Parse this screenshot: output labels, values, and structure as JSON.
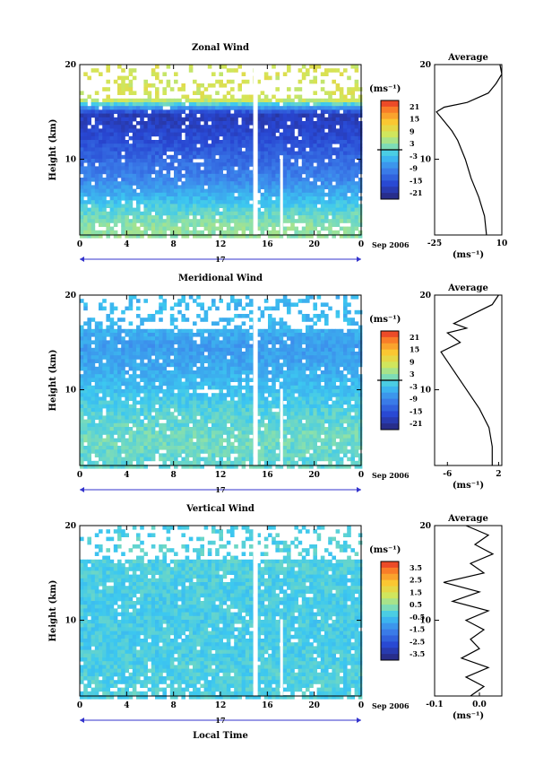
{
  "chart_data": [
    {
      "type": "heatmap",
      "title": "Zonal Wind",
      "ylabel": "Height (km)",
      "yticks": [
        "20",
        "10"
      ],
      "xticks": [
        "0",
        "4",
        "8",
        "12",
        "16",
        "20",
        "0"
      ],
      "ylim": [
        2,
        20
      ],
      "xlim": [
        0,
        24
      ],
      "day_label": "17",
      "date_label": "Sep 2006",
      "colorbar": {
        "unit": "(ms⁻¹)",
        "ticks": [
          "21",
          "15",
          "9",
          "3",
          "-3",
          "-9",
          "-15",
          "-21"
        ],
        "range": [
          -24,
          24
        ],
        "zero_line": true
      },
      "field_profile": [
        {
          "h": 3,
          "v": 3
        },
        {
          "h": 5,
          "v": -1
        },
        {
          "h": 8,
          "v": -9
        },
        {
          "h": 11,
          "v": -14
        },
        {
          "h": 13,
          "v": -17
        },
        {
          "h": 15,
          "v": -19
        },
        {
          "h": 16.5,
          "v": 8
        }
      ],
      "average": {
        "title": "Average",
        "unit": "(ms⁻¹)",
        "xticks": [
          "-25",
          "10"
        ],
        "xlim": [
          -25,
          10
        ],
        "yticks": [
          "20",
          "10"
        ],
        "h": [
          2,
          4,
          6,
          8,
          10,
          12,
          13,
          14,
          15,
          15.5,
          16,
          17,
          18,
          19,
          20
        ],
        "v": [
          2,
          1,
          -2,
          -6,
          -9,
          -13,
          -16,
          -20,
          -24,
          -20,
          -8,
          3,
          7,
          10,
          9
        ]
      }
    },
    {
      "type": "heatmap",
      "title": "Meridional Wind",
      "ylabel": "Height (km)",
      "yticks": [
        "20",
        "10"
      ],
      "xticks": [
        "0",
        "4",
        "8",
        "12",
        "16",
        "20",
        "0"
      ],
      "ylim": [
        2,
        20
      ],
      "xlim": [
        0,
        24
      ],
      "day_label": "17",
      "date_label": "Sep 2006",
      "colorbar": {
        "unit": "(ms⁻¹)",
        "ticks": [
          "21",
          "15",
          "9",
          "3",
          "-3",
          "-9",
          "-15",
          "-21"
        ],
        "range": [
          -24,
          24
        ],
        "zero_line": true
      },
      "field_profile": [
        {
          "h": 3,
          "v": 0
        },
        {
          "h": 5,
          "v": 1
        },
        {
          "h": 8,
          "v": -1
        },
        {
          "h": 11,
          "v": -4
        },
        {
          "h": 13,
          "v": -6
        },
        {
          "h": 15,
          "v": -7
        },
        {
          "h": 17,
          "v": -4
        }
      ],
      "average": {
        "title": "Average",
        "unit": "(ms⁻¹)",
        "xticks": [
          "-6",
          "2"
        ],
        "xlim": [
          -8,
          2.5
        ],
        "yticks": [
          "20",
          "10"
        ],
        "h": [
          2,
          4,
          6,
          8,
          10,
          12,
          13,
          14,
          15,
          16,
          16.5,
          17,
          18,
          19,
          20
        ],
        "v": [
          1,
          1,
          0.5,
          -1,
          -3,
          -5,
          -6,
          -7,
          -4,
          -6,
          -3,
          -5,
          -2,
          1,
          2
        ]
      }
    },
    {
      "type": "heatmap",
      "title": "Vertical Wind",
      "ylabel": "Height (km)",
      "xlabel": "Local Time",
      "yticks": [
        "20",
        "10"
      ],
      "xticks": [
        "0",
        "4",
        "8",
        "12",
        "16",
        "20",
        "0"
      ],
      "ylim": [
        2,
        20
      ],
      "xlim": [
        0,
        24
      ],
      "day_label": "17",
      "date_label": "Sep 2006",
      "colorbar": {
        "unit": "(ms⁻¹)",
        "ticks": [
          "3.5",
          "2.5",
          "1.5",
          "0.5",
          "-0.5",
          "-1.5",
          "-2.5",
          "-3.5"
        ],
        "range": [
          -4,
          4
        ],
        "zero_line": false
      },
      "field_profile": [
        {
          "h": 3,
          "v": -0.2
        },
        {
          "h": 8,
          "v": -0.3
        },
        {
          "h": 12,
          "v": -0.3
        },
        {
          "h": 16,
          "v": -0.2
        },
        {
          "h": 20,
          "v": -0.2
        }
      ],
      "average": {
        "title": "Average",
        "unit": "(ms⁻¹)",
        "xticks": [
          "-0.1",
          "0.0"
        ],
        "xlim": [
          -0.1,
          0.05
        ],
        "yticks": [
          "20",
          "10"
        ],
        "h": [
          2,
          3,
          4,
          5,
          6,
          7,
          8,
          9,
          10,
          11,
          12,
          13,
          14,
          15,
          16,
          17,
          18,
          19,
          20
        ],
        "v": [
          -0.02,
          0.01,
          -0.03,
          0.02,
          -0.04,
          0.0,
          -0.02,
          0.01,
          -0.03,
          0.02,
          -0.06,
          0.0,
          -0.08,
          0.01,
          -0.02,
          0.03,
          -0.01,
          0.02,
          -0.03
        ]
      }
    }
  ]
}
